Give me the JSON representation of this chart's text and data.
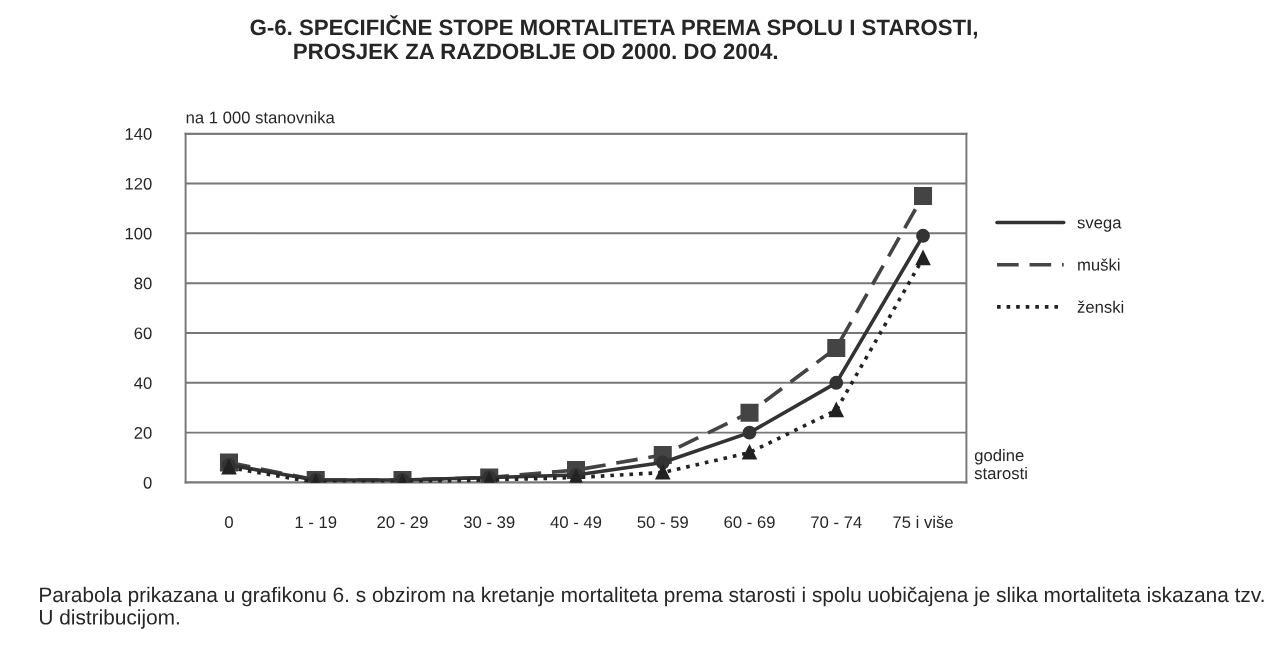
{
  "chart_data": {
    "type": "line",
    "title": "G-6. SPECIFIČNE STOPE MORTALITETA PREMA SPOLU I STAROSTI,\n       PROSJEK ZA RAZDOBLJE OD 2000. DO 2004.",
    "ylabel": "na 1 000 stanovnika",
    "xlabel": "godine\nstarosti",
    "categories": [
      "0",
      "1 - 19",
      "20 - 29",
      "30 - 39",
      "40 - 49",
      "50 - 59",
      "60 - 69",
      "70 - 74",
      "75 i više"
    ],
    "series": [
      {
        "name": "svega",
        "color": "#333333",
        "marker": "circle",
        "line_style": "solid",
        "values": [
          7,
          1,
          1,
          2,
          3,
          8,
          20,
          40,
          99
        ]
      },
      {
        "name": "muški",
        "color": "#444444",
        "marker": "square",
        "line_style": "dashed",
        "values": [
          8,
          1,
          1,
          2,
          5,
          11,
          28,
          54,
          115
        ]
      },
      {
        "name": "ženski",
        "color": "#222222",
        "marker": "triangle",
        "line_style": "dotted",
        "values": [
          6,
          0,
          0,
          1,
          2,
          4,
          12,
          29,
          90
        ]
      }
    ],
    "ylim": [
      0,
      140
    ],
    "yticks": [
      0,
      20,
      40,
      60,
      80,
      100,
      120,
      140
    ],
    "grid": "y",
    "legend": "right",
    "annotations": [
      "Parabola prikazana u grafikonu 6. s obzirom na kretanje mortaliteta prema starosti i spolu uobičajena je slika mortaliteta iskazana tzv. U distribucijom."
    ]
  }
}
